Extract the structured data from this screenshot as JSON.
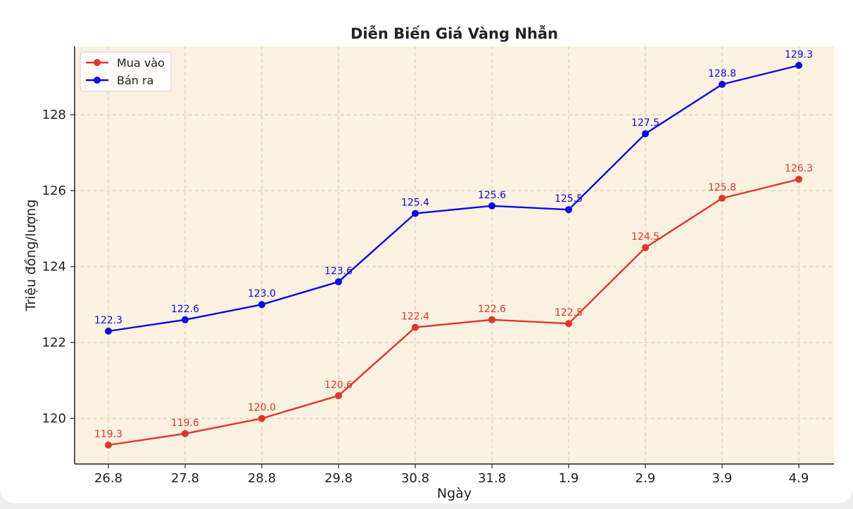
{
  "chart_data": {
    "type": "line",
    "title": "Diễn Biến Giá Vàng Nhẫn",
    "xlabel": "Ngày",
    "ylabel": "Triệu đồng/lượng",
    "categories": [
      "26.8",
      "27.8",
      "28.8",
      "29.8",
      "30.8",
      "31.8",
      "1.9",
      "2.9",
      "3.9",
      "4.9"
    ],
    "ylim": [
      118.8,
      129.8
    ],
    "yticks": [
      120,
      122,
      124,
      126,
      128
    ],
    "grid": true,
    "legend_position": "top-left",
    "background": "#fbf1e1",
    "series": [
      {
        "name": "Mua vào",
        "color": "#e0352b",
        "values": [
          119.3,
          119.6,
          120.0,
          120.6,
          122.4,
          122.6,
          122.5,
          124.5,
          125.8,
          126.3
        ],
        "labels": [
          "119.3",
          "119.6",
          "120.0",
          "120.6",
          "122.4",
          "122.6",
          "122.5",
          "124.5",
          "125.8",
          "126.3"
        ]
      },
      {
        "name": "Bán ra",
        "color": "#0a0ae6",
        "values": [
          122.3,
          122.6,
          123.0,
          123.6,
          125.4,
          125.6,
          125.5,
          127.5,
          128.8,
          129.3
        ],
        "labels": [
          "122.3",
          "122.6",
          "123.0",
          "123.6",
          "125.4",
          "125.6",
          "125.5",
          "127.5",
          "128.8",
          "129.3"
        ]
      }
    ]
  }
}
